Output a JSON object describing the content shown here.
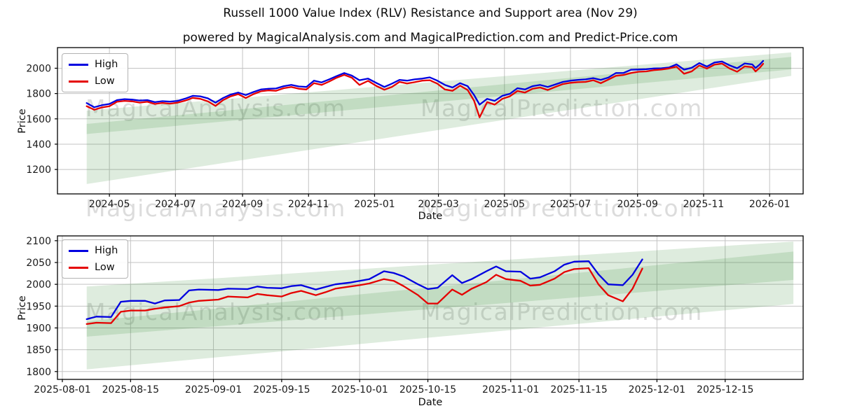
{
  "title": "Russell 1000 Value Index (RLV) Resistance and Support area (Nov 29)",
  "subtitle": "powered by MagicalAnalysis.com and MagicalPrediction.com and Predict-Price.com",
  "watermarks": [
    "MagicalAnalysis.com",
    "MagicalPrediction.com"
  ],
  "colors": {
    "high_line": "#0000e0",
    "low_line": "#e50000",
    "grid": "#c3c3c3",
    "axis": "#000000",
    "band_green": "#3c8c3c",
    "tick_text": "#1a1a1a"
  },
  "chart_data": [
    {
      "type": "line",
      "xlabel": "Date",
      "ylabel": "Price",
      "grid": true,
      "legend_position": "upper left",
      "ylim": [
        1007,
        2163
      ],
      "yticks": [
        1200,
        1400,
        1600,
        1800,
        2000
      ],
      "xlim": [
        "2024-03-14",
        "2026-02-01"
      ],
      "xticks": [
        {
          "label": "2024-05",
          "date": "2024-05-01"
        },
        {
          "label": "2024-07",
          "date": "2024-07-01"
        },
        {
          "label": "2024-09",
          "date": "2024-09-01"
        },
        {
          "label": "2024-11",
          "date": "2024-11-01"
        },
        {
          "label": "2025-01",
          "date": "2025-01-01"
        },
        {
          "label": "2025-03",
          "date": "2025-03-01"
        },
        {
          "label": "2025-05",
          "date": "2025-05-01"
        },
        {
          "label": "2025-07",
          "date": "2025-07-01"
        },
        {
          "label": "2025-09",
          "date": "2025-09-01"
        },
        {
          "label": "2025-11",
          "date": "2025-11-01"
        },
        {
          "label": "2026-01",
          "date": "2026-01-01"
        }
      ],
      "bands": [
        {
          "name": "resistance-band",
          "x": [
            "2024-04-10",
            "2026-01-21"
          ],
          "lower": [
            1480,
            1990
          ],
          "upper": [
            1665,
            2125
          ],
          "color": "#3c8c3c",
          "opacity": 0.17
        },
        {
          "name": "support-band",
          "x": [
            "2024-04-10",
            "2026-01-21"
          ],
          "lower": [
            1085,
            1940
          ],
          "upper": [
            1560,
            2090
          ],
          "color": "#3c8c3c",
          "opacity": 0.17
        }
      ],
      "dates": [
        "2024-04-10",
        "2024-04-17",
        "2024-04-24",
        "2024-05-01",
        "2024-05-08",
        "2024-05-15",
        "2024-05-22",
        "2024-05-29",
        "2024-06-05",
        "2024-06-12",
        "2024-06-19",
        "2024-06-26",
        "2024-07-03",
        "2024-07-10",
        "2024-07-17",
        "2024-07-24",
        "2024-07-31",
        "2024-08-07",
        "2024-08-14",
        "2024-08-21",
        "2024-08-28",
        "2024-09-04",
        "2024-09-11",
        "2024-09-18",
        "2024-09-25",
        "2024-10-02",
        "2024-10-09",
        "2024-10-16",
        "2024-10-23",
        "2024-10-30",
        "2024-11-06",
        "2024-11-13",
        "2024-11-20",
        "2024-11-27",
        "2024-12-04",
        "2024-12-11",
        "2024-12-18",
        "2024-12-26",
        "2025-01-03",
        "2025-01-10",
        "2025-01-17",
        "2025-01-24",
        "2025-01-31",
        "2025-02-07",
        "2025-02-14",
        "2025-02-21",
        "2025-02-28",
        "2025-03-07",
        "2025-03-14",
        "2025-03-21",
        "2025-03-28",
        "2025-04-03",
        "2025-04-08",
        "2025-04-15",
        "2025-04-22",
        "2025-04-29",
        "2025-05-06",
        "2025-05-13",
        "2025-05-20",
        "2025-05-27",
        "2025-06-03",
        "2025-06-10",
        "2025-06-17",
        "2025-06-24",
        "2025-07-01",
        "2025-07-08",
        "2025-07-15",
        "2025-07-22",
        "2025-07-29",
        "2025-08-05",
        "2025-08-12",
        "2025-08-19",
        "2025-08-26",
        "2025-09-02",
        "2025-09-09",
        "2025-09-16",
        "2025-09-23",
        "2025-09-30",
        "2025-10-07",
        "2025-10-14",
        "2025-10-21",
        "2025-10-28",
        "2025-11-04",
        "2025-11-11",
        "2025-11-18",
        "2025-11-25",
        "2025-12-02",
        "2025-12-09",
        "2025-12-16",
        "2025-12-19",
        "2025-12-23",
        "2025-12-26"
      ],
      "series": [
        {
          "name": "High",
          "color": "#0000e0",
          "values": [
            1725,
            1692,
            1708,
            1718,
            1748,
            1756,
            1752,
            1745,
            1748,
            1732,
            1740,
            1736,
            1742,
            1760,
            1782,
            1778,
            1762,
            1728,
            1765,
            1792,
            1808,
            1788,
            1812,
            1832,
            1838,
            1840,
            1858,
            1868,
            1856,
            1852,
            1902,
            1888,
            1912,
            1938,
            1962,
            1942,
            1905,
            1918,
            1882,
            1852,
            1878,
            1908,
            1902,
            1912,
            1918,
            1928,
            1902,
            1868,
            1848,
            1882,
            1858,
            1788,
            1712,
            1758,
            1742,
            1782,
            1798,
            1842,
            1832,
            1858,
            1868,
            1852,
            1872,
            1892,
            1902,
            1908,
            1912,
            1922,
            1908,
            1926,
            1962,
            1963,
            1988,
            1990,
            1992,
            1998,
            2000,
            2006,
            2030,
            1989,
            2003,
            2041,
            2013,
            2045,
            2053,
            2023,
            2000,
            2038,
            2030,
            2002,
            2030,
            2058
          ]
        },
        {
          "name": "Low",
          "color": "#e50000",
          "values": [
            1700,
            1672,
            1690,
            1700,
            1735,
            1742,
            1738,
            1728,
            1735,
            1718,
            1726,
            1720,
            1728,
            1744,
            1766,
            1758,
            1738,
            1702,
            1748,
            1778,
            1795,
            1765,
            1795,
            1818,
            1825,
            1822,
            1842,
            1852,
            1838,
            1832,
            1882,
            1868,
            1895,
            1925,
            1948,
            1925,
            1868,
            1900,
            1858,
            1830,
            1852,
            1892,
            1880,
            1890,
            1902,
            1905,
            1878,
            1832,
            1822,
            1862,
            1828,
            1742,
            1612,
            1732,
            1712,
            1758,
            1778,
            1820,
            1808,
            1838,
            1848,
            1828,
            1852,
            1875,
            1885,
            1890,
            1892,
            1905,
            1882,
            1910,
            1940,
            1947,
            1962,
            1972,
            1975,
            1985,
            1990,
            1998,
            2012,
            1956,
            1975,
            2022,
            1997,
            2028,
            2037,
            1998,
            1972,
            2015,
            2008,
            1975,
            2005,
            2035
          ]
        }
      ]
    },
    {
      "type": "line",
      "xlabel": "Date",
      "ylabel": "Price",
      "grid": true,
      "legend_position": "upper left",
      "ylim": [
        1782,
        2111
      ],
      "yticks": [
        1800,
        1850,
        1900,
        1950,
        2000,
        2050,
        2100
      ],
      "xlim": [
        "2025-07-31",
        "2025-12-31"
      ],
      "xticks": [
        {
          "label": "2025-08-01",
          "date": "2025-08-01"
        },
        {
          "label": "2025-08-15",
          "date": "2025-08-15"
        },
        {
          "label": "2025-09-01",
          "date": "2025-09-01"
        },
        {
          "label": "2025-09-15",
          "date": "2025-09-15"
        },
        {
          "label": "2025-10-01",
          "date": "2025-10-01"
        },
        {
          "label": "2025-10-15",
          "date": "2025-10-15"
        },
        {
          "label": "2025-11-01",
          "date": "2025-11-01"
        },
        {
          "label": "2025-11-15",
          "date": "2025-11-15"
        },
        {
          "label": "2025-12-01",
          "date": "2025-12-01"
        },
        {
          "label": "2025-12-15",
          "date": "2025-12-15"
        }
      ],
      "bands": [
        {
          "name": "resistance-band",
          "x": [
            "2025-08-06",
            "2025-12-29"
          ],
          "lower": [
            1880,
            2010
          ],
          "upper": [
            1995,
            2098
          ],
          "color": "#3c8c3c",
          "opacity": 0.17
        },
        {
          "name": "support-band",
          "x": [
            "2025-08-06",
            "2025-12-29"
          ],
          "lower": [
            1805,
            1955
          ],
          "upper": [
            1915,
            2075
          ],
          "color": "#3c8c3c",
          "opacity": 0.17
        }
      ],
      "dates": [
        "2025-08-06",
        "2025-08-08",
        "2025-08-11",
        "2025-08-13",
        "2025-08-15",
        "2025-08-18",
        "2025-08-20",
        "2025-08-22",
        "2025-08-25",
        "2025-08-27",
        "2025-08-29",
        "2025-09-02",
        "2025-09-04",
        "2025-09-08",
        "2025-09-10",
        "2025-09-12",
        "2025-09-15",
        "2025-09-17",
        "2025-09-19",
        "2025-09-22",
        "2025-09-24",
        "2025-09-26",
        "2025-09-29",
        "2025-10-01",
        "2025-10-03",
        "2025-10-06",
        "2025-10-08",
        "2025-10-10",
        "2025-10-13",
        "2025-10-15",
        "2025-10-17",
        "2025-10-20",
        "2025-10-22",
        "2025-10-24",
        "2025-10-27",
        "2025-10-29",
        "2025-10-31",
        "2025-11-03",
        "2025-11-05",
        "2025-11-07",
        "2025-11-10",
        "2025-11-12",
        "2025-11-14",
        "2025-11-17",
        "2025-11-19",
        "2025-11-21",
        "2025-11-24",
        "2025-11-26",
        "2025-11-28"
      ],
      "series": [
        {
          "name": "High",
          "color": "#0000e0",
          "values": [
            1920,
            1926,
            1925,
            1960,
            1962,
            1962,
            1956,
            1963,
            1964,
            1986,
            1988,
            1987,
            1990,
            1989,
            1995,
            1992,
            1991,
            1996,
            1998,
            1988,
            1994,
            2000,
            2004,
            2008,
            2012,
            2030,
            2026,
            2018,
            2000,
            1989,
            1992,
            2021,
            2003,
            2012,
            2030,
            2041,
            2030,
            2029,
            2013,
            2016,
            2030,
            2045,
            2052,
            2053,
            2023,
            2000,
            1998,
            2022,
            2057
          ]
        },
        {
          "name": "Low",
          "color": "#e50000",
          "values": [
            1909,
            1912,
            1911,
            1937,
            1940,
            1940,
            1944,
            1947,
            1950,
            1958,
            1962,
            1965,
            1972,
            1970,
            1978,
            1975,
            1972,
            1980,
            1985,
            1975,
            1982,
            1990,
            1995,
            1998,
            2002,
            2012,
            2008,
            1996,
            1975,
            1956,
            1956,
            1988,
            1976,
            1990,
            2005,
            2022,
            2012,
            2008,
            1997,
            1999,
            2013,
            2028,
            2035,
            2037,
            2000,
            1975,
            1961,
            1990,
            2036
          ]
        }
      ]
    }
  ]
}
